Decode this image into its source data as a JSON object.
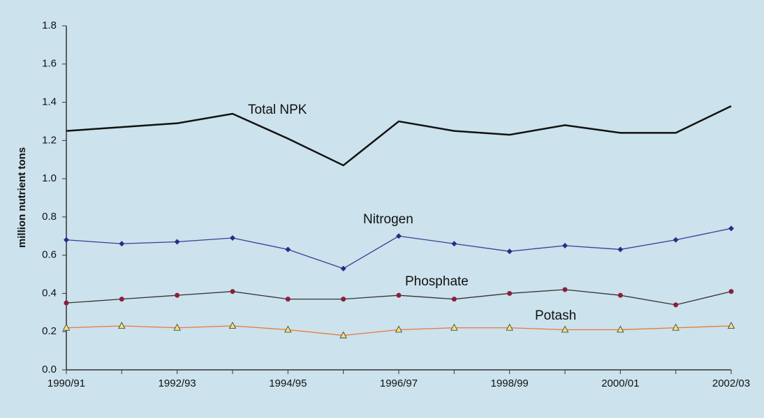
{
  "chart_data": {
    "type": "line",
    "y_label": "million nutrient tons",
    "categories": [
      "1990/91",
      null,
      "1992/93",
      null,
      "1994/95",
      null,
      "1996/97",
      null,
      "1998/99",
      null,
      "2000/01",
      null,
      "2002/03"
    ],
    "ylim": [
      0,
      1.8
    ],
    "yticks": [
      {
        "value": 0,
        "label": "0.0"
      },
      0.2,
      0.4,
      0.6,
      0.8,
      {
        "value": 1,
        "label": "1.0"
      },
      1.2,
      1.4,
      1.6,
      1.8
    ],
    "grid": false,
    "series": [
      {
        "name": "Total NPK",
        "color": "#111111",
        "marker": "none",
        "values": [
          1.25,
          1.27,
          1.29,
          1.34,
          1.21,
          1.07,
          1.3,
          1.25,
          1.23,
          1.28,
          1.24,
          1.24,
          1.38
        ]
      },
      {
        "name": "Nitrogen",
        "color": "#3b3b96",
        "marker": "diamond",
        "marker_color": "#2a2a8a",
        "values": [
          0.68,
          0.66,
          0.67,
          0.69,
          0.63,
          0.53,
          0.7,
          0.66,
          0.62,
          0.65,
          0.63,
          0.68,
          0.74
        ]
      },
      {
        "name": "Phosphate",
        "color": "#333333",
        "marker": "circle",
        "marker_color": "#8a1f3c",
        "values": [
          0.35,
          0.37,
          0.39,
          0.41,
          0.37,
          0.37,
          0.39,
          0.37,
          0.4,
          0.42,
          0.39,
          0.34,
          0.41
        ]
      },
      {
        "name": "Potash",
        "color": "#e8783a",
        "marker": "triangle",
        "marker_color": "#f2e27a",
        "values": [
          0.22,
          0.23,
          0.22,
          0.23,
          0.21,
          0.18,
          0.21,
          0.22,
          0.22,
          0.21,
          0.21,
          0.22,
          0.23
        ]
      }
    ]
  }
}
